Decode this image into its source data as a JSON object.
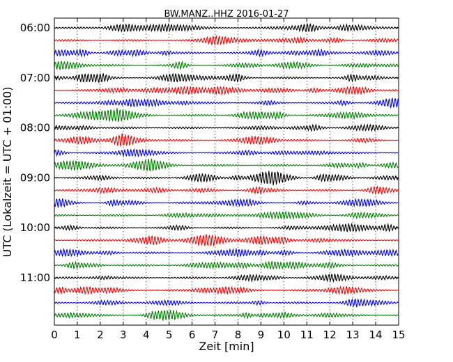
{
  "chart_data": {
    "type": "line",
    "title": "BW.MANZ..HHZ 2016-01-27",
    "xlabel": "Zeit  [min]",
    "ylabel": "UTC (Lokalzeit = UTC + 01:00)",
    "xlim": [
      0,
      15
    ],
    "x_ticks": [
      "0",
      "1",
      "2",
      "3",
      "4",
      "5",
      "6",
      "7",
      "8",
      "9",
      "10",
      "11",
      "12",
      "13",
      "14",
      "15"
    ],
    "y_tick_labels": [
      "06:00",
      "07:00",
      "08:00",
      "09:00",
      "10:00",
      "11:00"
    ],
    "grid": "vertical dotted",
    "trace_interval_min": 15,
    "series": [
      {
        "start": "06:00",
        "color": "#000000"
      },
      {
        "start": "06:15",
        "color": "#ff0000"
      },
      {
        "start": "06:30",
        "color": "#0000ff"
      },
      {
        "start": "06:45",
        "color": "#008000"
      },
      {
        "start": "07:00",
        "color": "#000000"
      },
      {
        "start": "07:15",
        "color": "#ff0000"
      },
      {
        "start": "07:30",
        "color": "#0000ff"
      },
      {
        "start": "07:45",
        "color": "#008000"
      },
      {
        "start": "08:00",
        "color": "#000000"
      },
      {
        "start": "08:15",
        "color": "#ff0000"
      },
      {
        "start": "08:30",
        "color": "#0000ff"
      },
      {
        "start": "08:45",
        "color": "#008000"
      },
      {
        "start": "09:00",
        "color": "#000000"
      },
      {
        "start": "09:15",
        "color": "#ff0000"
      },
      {
        "start": "09:30",
        "color": "#0000ff"
      },
      {
        "start": "09:45",
        "color": "#008000"
      },
      {
        "start": "10:00",
        "color": "#000000"
      },
      {
        "start": "10:15",
        "color": "#ff0000"
      },
      {
        "start": "10:30",
        "color": "#0000ff"
      },
      {
        "start": "10:45",
        "color": "#008000"
      },
      {
        "start": "11:00",
        "color": "#000000"
      },
      {
        "start": "11:15",
        "color": "#ff0000"
      },
      {
        "start": "11:30",
        "color": "#0000ff"
      },
      {
        "start": "11:45",
        "color": "#008000"
      }
    ]
  }
}
